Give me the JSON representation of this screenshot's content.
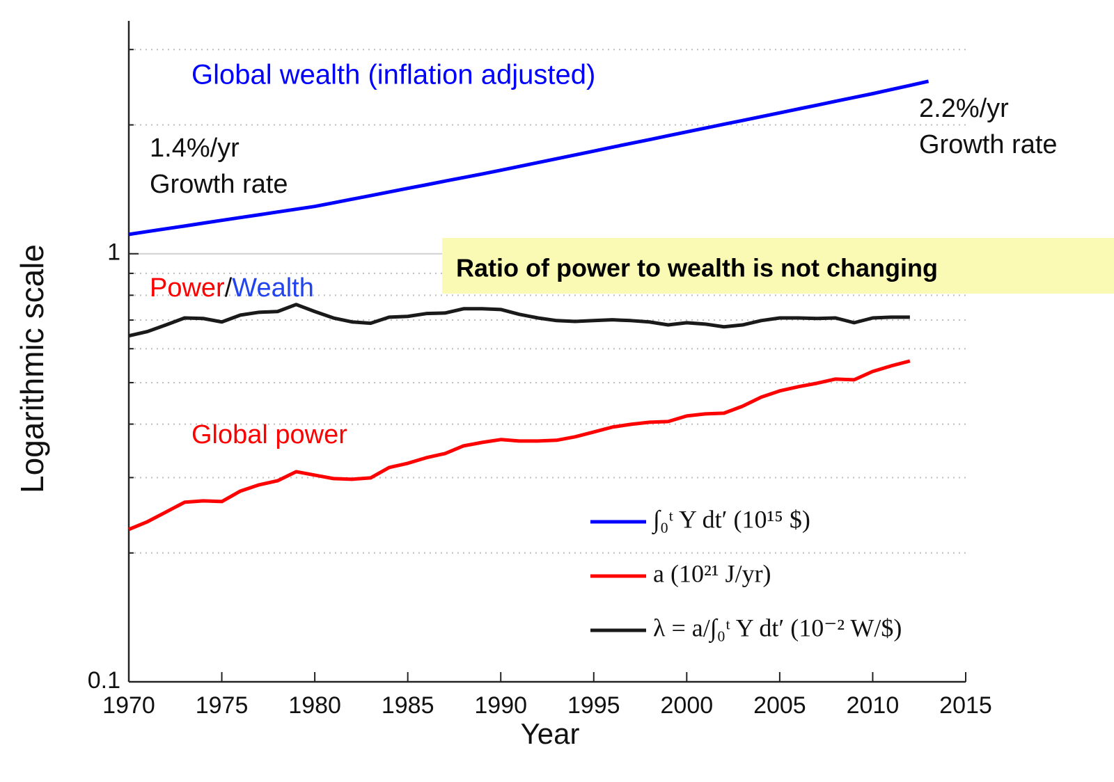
{
  "chart_data": {
    "type": "line",
    "xlabel": "Year",
    "ylabel": "Logarithmic scale",
    "log_y": true,
    "xlim": [
      1970,
      2015
    ],
    "xticks": [
      1970,
      1975,
      1980,
      1985,
      1990,
      1995,
      2000,
      2005,
      2010,
      2015
    ],
    "ylim": [
      0.1,
      3.5
    ],
    "yticks": [
      0.1,
      1
    ],
    "minor_yticks": [
      0.2,
      0.3,
      0.4,
      0.5,
      0.6,
      0.7,
      0.8,
      0.9,
      2,
      3
    ],
    "grid": true,
    "legend": "lower right",
    "series": [
      {
        "name": "∫₀ᵗ Y dt′ (10¹⁵ $)",
        "color": "#0000ff",
        "x": [
          1970,
          1971,
          1972,
          1973,
          1974,
          1975,
          1976,
          1977,
          1978,
          1979,
          1980,
          1981,
          1982,
          1983,
          1984,
          1985,
          1986,
          1987,
          1988,
          1989,
          1990,
          1991,
          1992,
          1993,
          1994,
          1995,
          1996,
          1997,
          1998,
          1999,
          2000,
          2001,
          2002,
          2003,
          2004,
          2005,
          2006,
          2007,
          2008,
          2009,
          2010,
          2011,
          2012,
          2013
        ],
        "values": [
          1.11,
          1.127,
          1.144,
          1.161,
          1.179,
          1.197,
          1.215,
          1.233,
          1.252,
          1.271,
          1.29,
          1.315,
          1.341,
          1.367,
          1.394,
          1.422,
          1.449,
          1.478,
          1.507,
          1.536,
          1.567,
          1.6,
          1.633,
          1.667,
          1.702,
          1.737,
          1.774,
          1.811,
          1.848,
          1.887,
          1.926,
          1.966,
          2.007,
          2.048,
          2.091,
          2.134,
          2.179,
          2.224,
          2.271,
          2.318,
          2.366,
          2.419,
          2.473,
          2.529
        ]
      },
      {
        "name": "a (10²¹ J/yr)",
        "color": "#ff0000",
        "x": [
          1970,
          1971,
          1972,
          1973,
          1974,
          1975,
          1976,
          1977,
          1978,
          1979,
          1980,
          1981,
          1982,
          1983,
          1984,
          1985,
          1986,
          1987,
          1988,
          1989,
          1990,
          1991,
          1992,
          1993,
          1994,
          1995,
          1996,
          1997,
          1998,
          1999,
          2000,
          2001,
          2002,
          2003,
          2004,
          2005,
          2006,
          2007,
          2008,
          2009,
          2010,
          2011,
          2012
        ],
        "values": [
          0.227,
          0.2366,
          0.2493,
          0.2627,
          0.2647,
          0.2637,
          0.279,
          0.2885,
          0.295,
          0.3097,
          0.304,
          0.2984,
          0.2973,
          0.2995,
          0.3168,
          0.324,
          0.3339,
          0.3414,
          0.3558,
          0.3625,
          0.3681,
          0.3653,
          0.3653,
          0.3667,
          0.3736,
          0.3834,
          0.3936,
          0.3996,
          0.4041,
          0.4056,
          0.4179,
          0.4227,
          0.4242,
          0.4404,
          0.4624,
          0.4782,
          0.4891,
          0.4983,
          0.5096,
          0.5077,
          0.531,
          0.5472,
          0.5617
        ]
      },
      {
        "name": "λ = a/∫₀ᵗ Y dt′ (10⁻² W/$)",
        "color": "#1a1a1a",
        "x": [
          1970,
          1971,
          1972,
          1973,
          1974,
          1975,
          1976,
          1977,
          1978,
          1979,
          1980,
          1981,
          1982,
          1983,
          1984,
          1985,
          1986,
          1987,
          1988,
          1989,
          1990,
          1991,
          1992,
          1993,
          1994,
          1995,
          1996,
          1997,
          1998,
          1999,
          2000,
          2001,
          2002,
          2003,
          2004,
          2005,
          2006,
          2007,
          2008,
          2009,
          2010,
          2011,
          2012
        ],
        "values": [
          0.643,
          0.658,
          0.682,
          0.708,
          0.706,
          0.693,
          0.719,
          0.73,
          0.733,
          0.761,
          0.733,
          0.708,
          0.693,
          0.688,
          0.711,
          0.714,
          0.725,
          0.727,
          0.744,
          0.744,
          0.741,
          0.722,
          0.708,
          0.698,
          0.695,
          0.698,
          0.701,
          0.698,
          0.693,
          0.682,
          0.69,
          0.685,
          0.675,
          0.682,
          0.698,
          0.708,
          0.708,
          0.706,
          0.708,
          0.69,
          0.708,
          0.711,
          0.711
        ]
      }
    ],
    "annotations": [
      {
        "text": "Global wealth (inflation adjusted)",
        "color": "#0000ff"
      },
      {
        "text": "1.4%/yr",
        "color": "#111111"
      },
      {
        "text": "Growth rate",
        "color": "#111111"
      },
      {
        "text": "2.2%/yr",
        "color": "#111111"
      },
      {
        "text": "Growth rate",
        "color": "#111111"
      },
      {
        "parts": [
          {
            "text": "Power",
            "color": "#ff0000"
          },
          {
            "text": "/",
            "color": "#111111"
          },
          {
            "text": "Wealth",
            "color": "#2244ee"
          }
        ]
      },
      {
        "text": "Global power",
        "color": "#ff0000"
      },
      {
        "text": "Ratio of power to wealth is not changing",
        "color": "#000000",
        "background": "#fafab4"
      }
    ]
  }
}
